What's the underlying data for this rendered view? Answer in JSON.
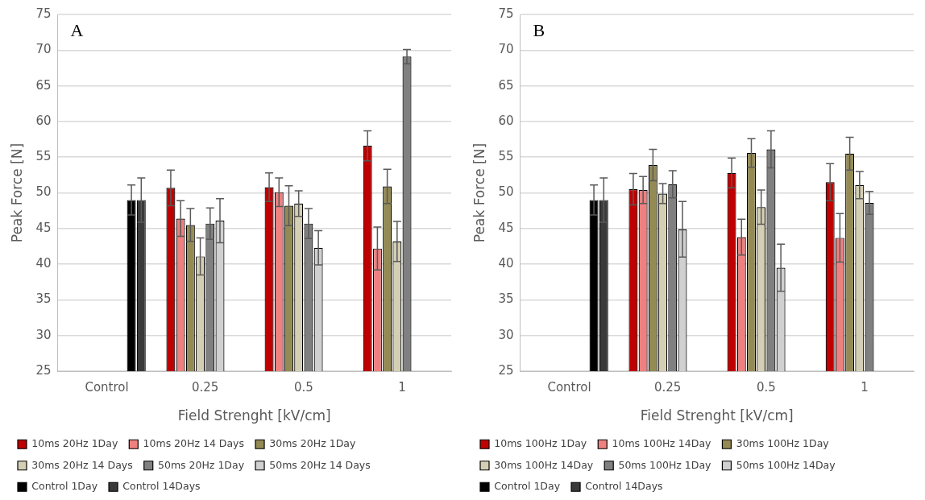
{
  "chart_data": [
    {
      "type": "bar",
      "title": "A",
      "xlabel": "Field Strenght [kV/cm]",
      "ylabel": "Peak Force [N]",
      "categories": [
        "Control",
        "0.25",
        "0.5",
        "1"
      ],
      "ylim": [
        25,
        75
      ],
      "yticks": [
        25,
        30,
        35,
        40,
        45,
        50,
        55,
        60,
        65,
        70,
        75
      ],
      "grid": "y",
      "legend": "bottom",
      "series": [
        {
          "name": "10ms 20Hz 1Day",
          "color": "#c00000",
          "values": [
            null,
            50.7,
            50.8,
            56.6
          ],
          "errors": [
            null,
            2.5,
            2.0,
            2.1
          ]
        },
        {
          "name": "10ms 20Hz 14 Days",
          "color": "#ee8080",
          "values": [
            null,
            46.4,
            50.1,
            42.2
          ],
          "errors": [
            null,
            2.5,
            2.0,
            3.0
          ]
        },
        {
          "name": "30ms 20Hz 1Day",
          "color": "#948a54",
          "values": [
            null,
            45.5,
            48.2,
            50.9
          ],
          "errors": [
            null,
            2.3,
            2.8,
            2.4
          ]
        },
        {
          "name": "30ms 20Hz 14 Days",
          "color": "#d4cfb4",
          "values": [
            null,
            41.1,
            48.5,
            43.2
          ],
          "errors": [
            null,
            2.6,
            1.8,
            2.8
          ]
        },
        {
          "name": "50ms 20Hz 1Day",
          "color": "#808080",
          "values": [
            null,
            45.7,
            45.7,
            69.1
          ],
          "errors": [
            null,
            2.2,
            2.1,
            1.0
          ]
        },
        {
          "name": "50ms 20Hz 14 Days",
          "color": "#d0d0d0",
          "values": [
            null,
            46.1,
            42.3,
            null
          ],
          "errors": [
            null,
            3.1,
            2.4,
            null
          ]
        },
        {
          "name": "Control 1Day",
          "color": "#000000",
          "values": [
            49.0,
            null,
            null,
            null
          ],
          "errors": [
            2.1,
            null,
            null,
            null
          ]
        },
        {
          "name": "Control 14Days",
          "color": "#3a3a3a",
          "values": [
            49.0,
            null,
            null,
            null
          ],
          "errors": [
            3.1,
            null,
            null,
            null
          ]
        }
      ]
    },
    {
      "type": "bar",
      "title": "B",
      "xlabel": "Field Strenght [kV/cm]",
      "ylabel": "Peak Force [N]",
      "categories": [
        "Control",
        "0.25",
        "0.5",
        "1"
      ],
      "ylim": [
        25,
        75
      ],
      "yticks": [
        25,
        30,
        35,
        40,
        45,
        50,
        55,
        60,
        65,
        70,
        75
      ],
      "grid": "y",
      "legend": "bottom",
      "series": [
        {
          "name": "10ms 100Hz 1Day",
          "color": "#c00000",
          "values": [
            null,
            50.5,
            52.8,
            51.5
          ],
          "errors": [
            null,
            2.2,
            2.1,
            2.6
          ]
        },
        {
          "name": "10ms 100Hz 14Day",
          "color": "#ee8080",
          "values": [
            null,
            50.4,
            43.8,
            43.7
          ],
          "errors": [
            null,
            1.9,
            2.5,
            3.4
          ]
        },
        {
          "name": "30ms 100Hz 1Day",
          "color": "#948a54",
          "values": [
            null,
            53.9,
            55.6,
            55.5
          ],
          "errors": [
            null,
            2.2,
            2.0,
            2.3
          ]
        },
        {
          "name": "30ms 100Hz 14Day",
          "color": "#d4cfb4",
          "values": [
            null,
            49.9,
            48.0,
            51.1
          ],
          "errors": [
            null,
            1.4,
            2.4,
            1.9
          ]
        },
        {
          "name": "50ms 100Hz 1Day",
          "color": "#808080",
          "values": [
            null,
            51.2,
            56.1,
            48.6
          ],
          "errors": [
            null,
            1.9,
            2.6,
            1.6
          ]
        },
        {
          "name": "50ms 100Hz 14Day",
          "color": "#d0d0d0",
          "values": [
            null,
            44.9,
            39.5,
            null
          ],
          "errors": [
            null,
            3.9,
            3.3,
            null
          ]
        },
        {
          "name": "Control 1Day",
          "color": "#000000",
          "values": [
            49.0,
            null,
            null,
            null
          ],
          "errors": [
            2.1,
            null,
            null,
            null
          ]
        },
        {
          "name": "Control 14Days",
          "color": "#3a3a3a",
          "values": [
            49.0,
            null,
            null,
            null
          ],
          "errors": [
            3.1,
            null,
            null,
            null
          ]
        }
      ]
    }
  ]
}
